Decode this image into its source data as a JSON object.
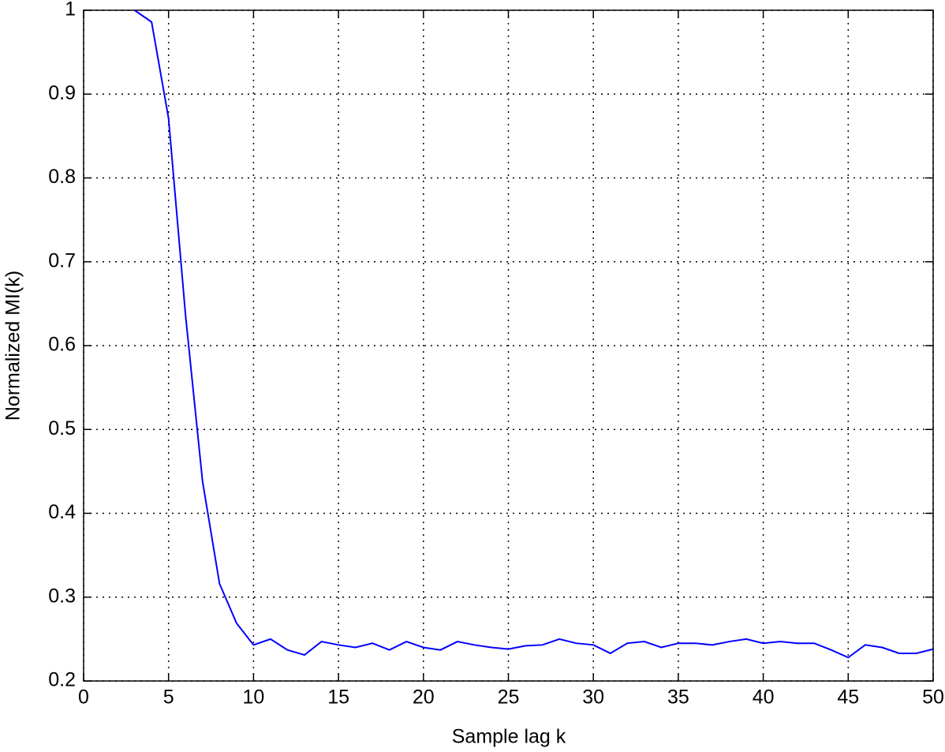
{
  "chart_data": {
    "type": "line",
    "xlabel": "Sample lag k",
    "ylabel": "Normalized MI(k)",
    "x": [
      3,
      4,
      5,
      6,
      7,
      8,
      9,
      10,
      11,
      12,
      13,
      14,
      15,
      16,
      17,
      18,
      19,
      20,
      21,
      22,
      23,
      24,
      25,
      26,
      27,
      28,
      29,
      30,
      31,
      32,
      33,
      34,
      35,
      36,
      37,
      38,
      39,
      40,
      41,
      42,
      43,
      44,
      45,
      46,
      47,
      48,
      49,
      50
    ],
    "series": [
      {
        "color": "#0000ff",
        "values": [
          1.0,
          0.986,
          0.871,
          0.636,
          0.438,
          0.316,
          0.269,
          0.243,
          0.25,
          0.237,
          0.231,
          0.247,
          0.243,
          0.24,
          0.245,
          0.237,
          0.247,
          0.24,
          0.237,
          0.247,
          0.243,
          0.24,
          0.238,
          0.242,
          0.243,
          0.25,
          0.245,
          0.243,
          0.233,
          0.245,
          0.247,
          0.24,
          0.245,
          0.245,
          0.243,
          0.247,
          0.25,
          0.245,
          0.247,
          0.245,
          0.245,
          0.237,
          0.228,
          0.243,
          0.24,
          0.233,
          0.233,
          0.238
        ]
      }
    ],
    "xlim": [
      0,
      50
    ],
    "xticks": [
      0,
      5,
      10,
      15,
      20,
      25,
      30,
      35,
      40,
      45,
      50
    ],
    "ylim": [
      0.2,
      1
    ],
    "yticks": [
      0.2,
      0.3,
      0.4,
      0.5,
      0.6,
      0.7,
      0.8,
      0.9,
      1
    ],
    "grid": true
  }
}
